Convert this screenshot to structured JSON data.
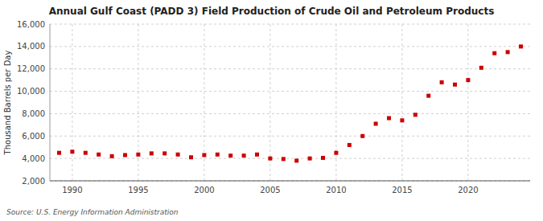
{
  "chart_data": {
    "type": "scatter",
    "title": "Annual Gulf Coast (PADD 3) Field Production of Crude Oil and Petroleum Products",
    "y_label": "Thousand Barrels per Day",
    "annotations": [
      "Source: U.S. Energy Information Administration"
    ],
    "x": [
      1989,
      1990,
      1991,
      1992,
      1993,
      1994,
      1995,
      1996,
      1997,
      1998,
      1999,
      2000,
      2001,
      2002,
      2003,
      2004,
      2005,
      2006,
      2007,
      2008,
      2009,
      2010,
      2011,
      2012,
      2013,
      2014,
      2015,
      2016,
      2017,
      2018,
      2019,
      2020,
      2021,
      2022,
      2023,
      2024
    ],
    "values": [
      4500,
      4600,
      4500,
      4350,
      4200,
      4300,
      4350,
      4450,
      4450,
      4350,
      4100,
      4300,
      4350,
      4250,
      4250,
      4350,
      4000,
      3950,
      3800,
      4000,
      4050,
      4500,
      5200,
      6000,
      7100,
      7600,
      7400,
      7900,
      9600,
      10800,
      10600,
      11000,
      12100,
      13400,
      13500,
      14000
    ],
    "color": "#cc0000",
    "marker": "square",
    "xlim": [
      1988.3,
      2024.7
    ],
    "xticks": [
      1990,
      1995,
      2000,
      2005,
      2010,
      2015,
      2020
    ],
    "ylim": [
      2000,
      16000
    ],
    "yticks": [
      {
        "value": 2000,
        "label": "2,000"
      },
      {
        "value": 4000,
        "label": "4,000"
      },
      {
        "value": 6000,
        "label": "6,000"
      },
      {
        "value": 8000,
        "label": "8,000"
      },
      {
        "value": 10000,
        "label": "10,000"
      },
      {
        "value": 12000,
        "label": "12,000"
      },
      {
        "value": 14000,
        "label": "14,000"
      },
      {
        "value": 16000,
        "label": "16,000"
      }
    ],
    "grid": true
  }
}
